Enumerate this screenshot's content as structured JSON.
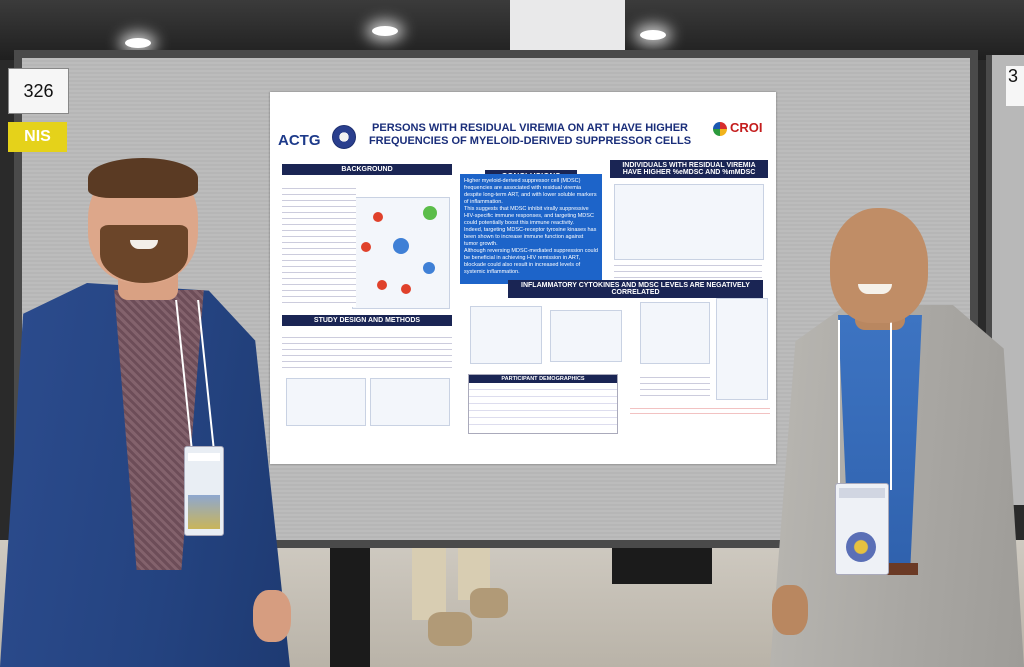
{
  "board": {
    "number_left": "326",
    "number_right": "3",
    "tag": "NIS"
  },
  "poster": {
    "title_line1": "PERSONS WITH RESIDUAL VIREMIA ON ART HAVE HIGHER",
    "title_line2": "FREQUENCIES OF MYELOID-DERIVED SUPPRESSOR CELLS",
    "logo_left": "ACTG",
    "logo_right": "CROI",
    "sections": {
      "background": "BACKGROUND",
      "study_design": "STUDY DESIGN AND METHODS",
      "conclusions": "CONCLUSIONS",
      "individuals": "INDIVIDUALS WITH RESIDUAL VIREMIA HAVE HIGHER %eMDSC AND %mMDSC",
      "cytokines": "INFLAMMATORY CYTOKINES AND MDSC LEVELS ARE NEGATIVELY CORRELATED",
      "demographics": "PARTICIPANT DEMOGRAPHICS"
    },
    "conclusions_text": [
      "Higher myeloid-derived suppressor cell (MDSC) frequencies are associated with residual viremia despite long-term ART, and with lower soluble markers of inflammation.",
      "This suggests that MDSC inhibit virally suppressive HIV-specific immune responses, and targeting MDSC could potentially boost this immune reactivity.",
      "Indeed, targeting MDSC-receptor tyrosine kinases has been shown to increase immune function against tumor growth.",
      "Although reversing MDSC-mediated suppression could be beneficial in achieving HIV remission in ART, blockade could also result in increased levels of systemic inflammation."
    ]
  },
  "colors": {
    "poster_navy": "#1a2554",
    "conclusions_blue": "#1d64c9",
    "tag_yellow": "#e5d21a",
    "jacket_left": "#2c4c8e",
    "jacket_right": "#b0aeaa"
  }
}
